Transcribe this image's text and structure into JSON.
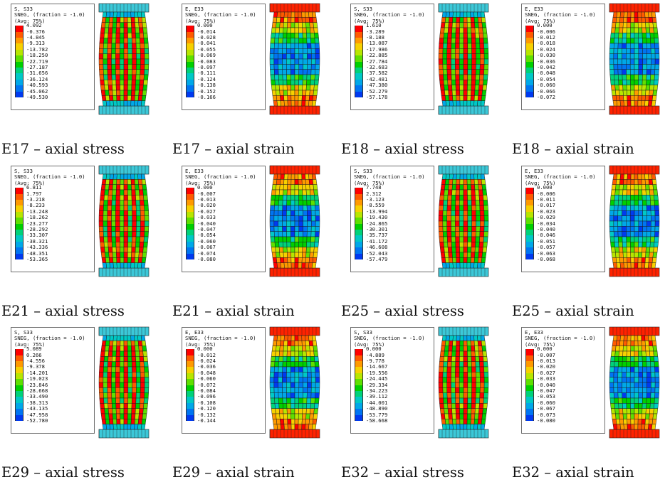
{
  "panels": [
    {
      "caption": "E17 – axial stress",
      "kind": "stress",
      "header": [
        "S, S33",
        "SNEG, (fraction = -1.0)",
        "(Avg: 75%)"
      ],
      "values": [
        "4.092",
        "-0.376",
        "-4.845",
        "-9.313",
        "-13.782",
        "-18.250",
        "-22.719",
        "-27.187",
        "-31.656",
        "-36.124",
        "-40.593",
        "-45.062",
        "-49.530"
      ]
    },
    {
      "caption": "E17 – axial strain",
      "kind": "strain",
      "header": [
        "E, E33",
        "SNEG, (fraction = -1.0)",
        "(Avg: 75%)"
      ],
      "values": [
        "0.000",
        "-0.014",
        "-0.028",
        "-0.041",
        "-0.055",
        "-0.069",
        "-0.083",
        "-0.097",
        "-0.111",
        "-0.124",
        "-0.138",
        "-0.152",
        "-0.166"
      ]
    },
    {
      "caption": "E18 – axial stress",
      "kind": "stress",
      "header": [
        "S, S33",
        "SNEG, (fraction = -1.0)",
        "(Avg: 75%)"
      ],
      "values": [
        "1.610",
        "-3.289",
        "-8.188",
        "-13.087",
        "-17.986",
        "-22.885",
        "-27.784",
        "-32.683",
        "-37.582",
        "-42.481",
        "-47.380",
        "-52.279",
        "-57.178"
      ]
    },
    {
      "caption": "E18 – axial strain",
      "kind": "strain",
      "header": [
        "E, E33",
        "SNEG, (fraction = -1.0)",
        "(Avg: 75%)"
      ],
      "values": [
        "0.000",
        "-0.006",
        "-0.012",
        "-0.018",
        "-0.024",
        "-0.030",
        "-0.036",
        "-0.042",
        "-0.048",
        "-0.054",
        "-0.060",
        "-0.066",
        "-0.072"
      ]
    },
    {
      "caption": "E21 – axial stress",
      "kind": "stress",
      "header": [
        "S, S33",
        "SNEG, (fraction = -1.0)",
        "(Avg: 75%)"
      ],
      "values": [
        "6.811",
        "1.797",
        "-3.218",
        "-8.233",
        "-13.248",
        "-18.262",
        "-23.277",
        "-28.292",
        "-33.307",
        "-38.321",
        "-43.336",
        "-48.351",
        "-53.365"
      ]
    },
    {
      "caption": "E21 – axial strain",
      "kind": "strain",
      "header": [
        "E, E33",
        "SNEG, (fraction = -1.0)",
        "(Avg: 75%)"
      ],
      "values": [
        "0.000",
        "-0.007",
        "-0.013",
        "-0.020",
        "-0.027",
        "-0.033",
        "-0.040",
        "-0.047",
        "-0.054",
        "-0.060",
        "-0.067",
        "-0.074",
        "-0.080"
      ]
    },
    {
      "caption": "E25 – axial stress",
      "kind": "stress",
      "header": [
        "S, S33",
        "SNEG, (fraction = -1.0)",
        "(Avg: 75%)"
      ],
      "values": [
        "7.748",
        "2.312",
        "-3.123",
        "-8.559",
        "-13.994",
        "-19.430",
        "-24.865",
        "-30.301",
        "-35.737",
        "-41.172",
        "-46.608",
        "-52.043",
        "-57.479"
      ]
    },
    {
      "caption": "E25 – axial strain",
      "kind": "strain",
      "header": [
        "E, E33",
        "SNEG, (fraction = -1.0)",
        "(Avg: 75%)"
      ],
      "values": [
        "0.000",
        "-0.006",
        "-0.011",
        "-0.017",
        "-0.023",
        "-0.029",
        "-0.034",
        "-0.040",
        "-0.046",
        "-0.051",
        "-0.057",
        "-0.063",
        "-0.068"
      ]
    },
    {
      "caption": "E29 – axial stress",
      "kind": "stress",
      "header": [
        "S, S33",
        "SNEG, (fraction = -1.0)",
        "(Avg: 75%)"
      ],
      "values": [
        "5.089",
        "0.266",
        "-4.556",
        "-9.378",
        "-14.201",
        "-19.023",
        "-23.846",
        "-28.668",
        "-33.490",
        "-38.313",
        "-43.135",
        "-47.958",
        "-52.780"
      ]
    },
    {
      "caption": "E29 – axial strain",
      "kind": "strain",
      "header": [
        "E, E33",
        "SNEG, (fraction = -1.0)",
        "(Avg: 75%)"
      ],
      "values": [
        "0.000",
        "-0.012",
        "-0.024",
        "-0.036",
        "-0.048",
        "-0.060",
        "-0.072",
        "-0.084",
        "-0.096",
        "-0.108",
        "-0.120",
        "-0.132",
        "-0.144"
      ]
    },
    {
      "caption": "E32 – axial stress",
      "kind": "stress",
      "header": [
        "S, S33",
        "SNEG, (fraction = -1.0)",
        "(Avg: 75%)"
      ],
      "values": [
        "0.000",
        "-4.889",
        "-9.778",
        "-14.667",
        "-19.556",
        "-24.445",
        "-29.334",
        "-34.223",
        "-39.112",
        "-44.001",
        "-48.890",
        "-53.779",
        "-58.668"
      ]
    },
    {
      "caption": "E32 – axial strain",
      "kind": "strain",
      "header": [
        "E, E33",
        "SNEG, (fraction = -1.0)",
        "(Avg: 75%)"
      ],
      "values": [
        "0.000",
        "-0.007",
        "-0.013",
        "-0.020",
        "-0.027",
        "-0.033",
        "-0.040",
        "-0.047",
        "-0.053",
        "-0.060",
        "-0.067",
        "-0.073",
        "-0.080"
      ]
    }
  ],
  "colormap": [
    "#ff0000",
    "#ff5a00",
    "#ff9a00",
    "#f7d100",
    "#b8e600",
    "#5fe000",
    "#00d000",
    "#00d27a",
    "#00c9c6",
    "#00a8e8",
    "#0075f2",
    "#003af0",
    "#0000ff"
  ]
}
